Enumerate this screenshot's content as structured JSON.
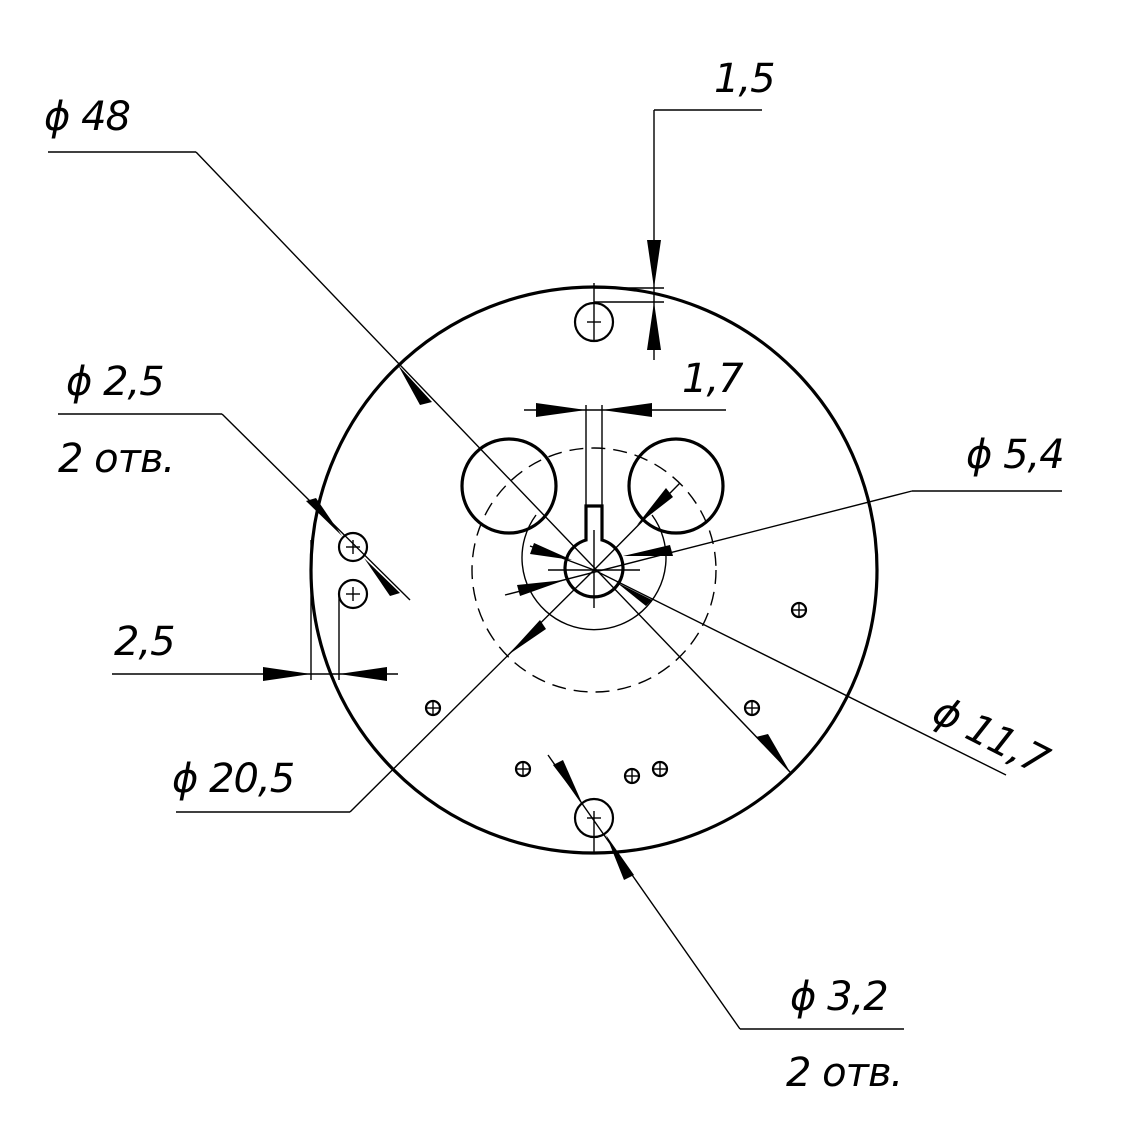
{
  "labels": {
    "outer_diameter": "ϕ 48",
    "top_offset": "1,5",
    "slot_width": "1,7",
    "small_holes_diameter": "ϕ 2,5",
    "small_holes_count": "2 отв.",
    "center_hole_diameter": "ϕ 5,4",
    "edge_offset": "2,5",
    "pcd_diameter": "ϕ 20,5",
    "inner_diameter": "ϕ 11,7",
    "mount_holes_diameter": "ϕ 3,2",
    "mount_holes_count": "2 отв."
  }
}
